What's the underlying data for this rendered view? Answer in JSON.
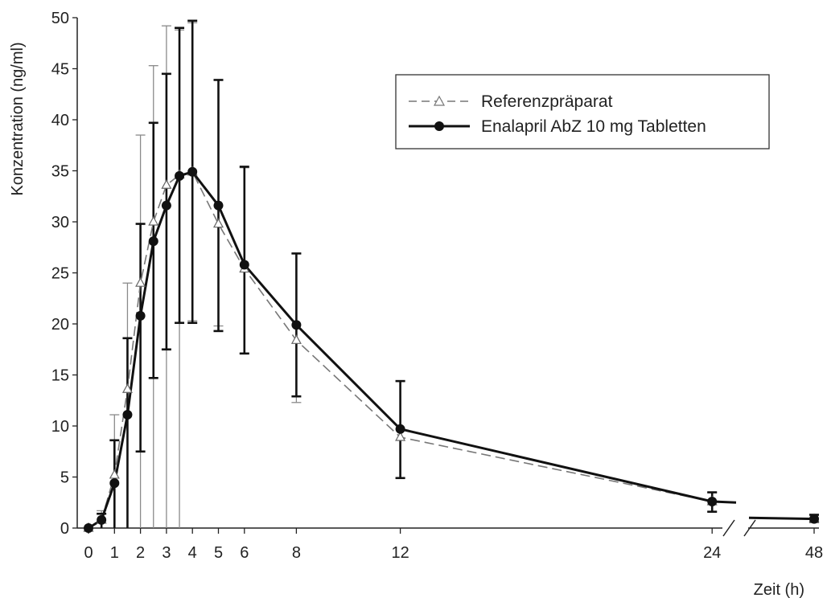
{
  "chart_data": {
    "type": "line",
    "xlabel": "Zeit (h)",
    "ylabel": "Konzentration (ng/ml)",
    "ylim": [
      0,
      50
    ],
    "y_ticks": [
      "0",
      "5",
      "10",
      "15",
      "20",
      "25",
      "30",
      "35",
      "40",
      "45",
      "50"
    ],
    "x_ticks": [
      "0",
      "1",
      "2",
      "3",
      "4",
      "5",
      "6",
      "8",
      "12",
      "24",
      "48"
    ],
    "x_axis_break": "between 24 and 48",
    "legend_position": "top-right",
    "series": [
      {
        "name": "Referenzpräparat",
        "style": "dashed",
        "marker": "open-triangle",
        "color": "#777777",
        "x": [
          0,
          0.5,
          1,
          1.5,
          2,
          2.5,
          3,
          3.5,
          4,
          5,
          6,
          8,
          12,
          24,
          48
        ],
        "y": [
          0,
          0.8,
          5.2,
          13.6,
          24.0,
          30.0,
          33.6,
          34.6,
          34.9,
          29.8,
          25.4,
          18.4,
          8.9,
          2.6,
          0.9
        ],
        "err_hi": [
          0,
          1.7,
          11.1,
          24.0,
          38.5,
          45.3,
          49.2,
          48.8,
          49.5,
          43.9,
          35.3,
          26.9,
          14.4,
          3.5,
          1.3
        ],
        "err_lo": [
          0,
          0,
          0,
          0,
          0,
          0,
          0,
          0,
          20.3,
          19.8,
          17.1,
          12.3,
          4.9,
          1.6,
          0.6
        ]
      },
      {
        "name": "Enalapril AbZ 10 mg Tabletten",
        "style": "solid",
        "marker": "filled-circle",
        "color": "#111111",
        "x": [
          0,
          0.5,
          1,
          1.5,
          2,
          2.5,
          3,
          3.5,
          4,
          5,
          6,
          8,
          12,
          24,
          48
        ],
        "y": [
          0,
          0.8,
          4.4,
          11.1,
          20.8,
          28.1,
          31.6,
          34.5,
          34.9,
          31.6,
          25.8,
          19.9,
          9.7,
          2.6,
          0.9
        ],
        "err_hi": [
          0,
          1.4,
          8.6,
          18.6,
          29.8,
          39.7,
          44.5,
          49.0,
          49.7,
          43.9,
          35.4,
          26.9,
          14.4,
          3.5,
          1.3
        ],
        "err_lo": [
          0,
          0,
          0,
          0,
          7.5,
          14.7,
          17.5,
          20.1,
          20.1,
          19.3,
          17.1,
          12.9,
          4.9,
          1.6,
          0.6
        ]
      }
    ]
  }
}
